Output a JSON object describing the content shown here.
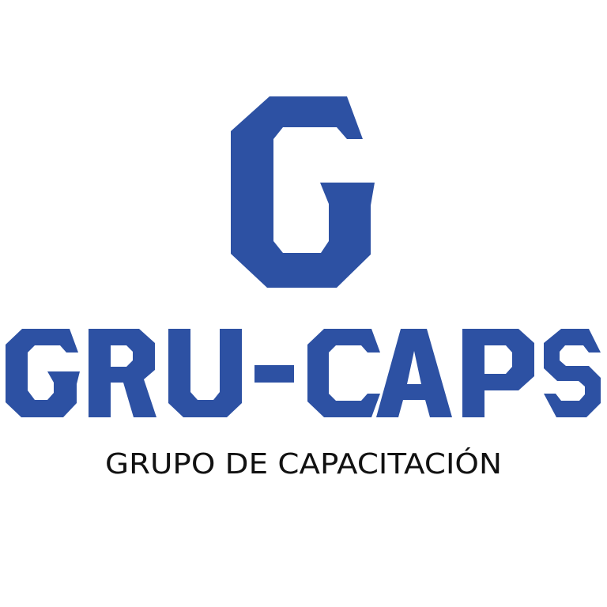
{
  "logo": {
    "monogram": "G",
    "wordmark": "GRU-CAPS",
    "tagline": "GRUPO DE CAPACITACIÓN"
  },
  "colors": {
    "brand_blue": "#2D51A3",
    "tagline_text": "#111111",
    "background": "#FFFFFF"
  }
}
